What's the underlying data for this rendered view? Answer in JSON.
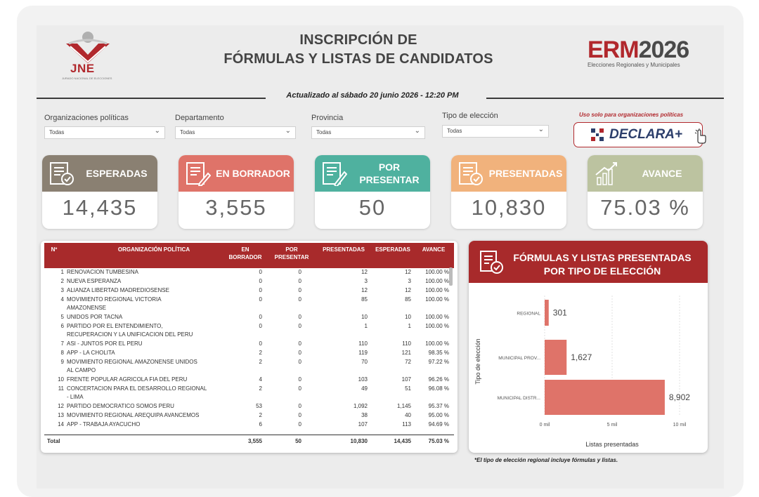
{
  "header": {
    "title_line1": "INSCRIPCIÓN DE",
    "title_line2": "FÓRMULAS Y LISTAS DE CANDIDATOS",
    "updated": "Actualizado al sábado 20 junio 2026 - 12:20 PM",
    "left_logo_text": "JNE",
    "left_logo_sub": "JURADO NACIONAL DE ELECCIONES",
    "right_logo_a": "ERM",
    "right_logo_b": "2026",
    "right_logo_sub": "Elecciones Regionales y Municipales"
  },
  "filters": [
    {
      "label": "Organizaciones políticas",
      "value": "Todas"
    },
    {
      "label": "Departamento",
      "value": "Todas"
    },
    {
      "label": "Provincia",
      "value": "Todas"
    },
    {
      "label": "Tipo de elección",
      "value": "Todas"
    }
  ],
  "declara": {
    "note": "Uso solo para organizaciones políticas",
    "label": "DECLARA+"
  },
  "kpis": [
    {
      "label": "ESPERADAS",
      "value": "14,435",
      "color": "#8a8072"
    },
    {
      "label": "EN BORRADOR",
      "value": "3,555",
      "color": "#df7369"
    },
    {
      "label": "POR PRESENTAR",
      "value": "50",
      "color": "#4fb19f"
    },
    {
      "label": "PRESENTADAS",
      "value": "10,830",
      "color": "#f1b27c"
    },
    {
      "label": "AVANCE",
      "value": "75.03 %",
      "color": "#bcc3a0"
    }
  ],
  "table": {
    "headers": [
      "Nº",
      "ORGANIZACIÓN POLÍTICA",
      "EN BORRADOR",
      "POR PRESENTAR",
      "PRESENTADAS",
      "ESPERADAS",
      "AVANCE"
    ],
    "rows": [
      {
        "n": "1",
        "org": [
          "RENOVACION TUMBESINA"
        ],
        "borr": "0",
        "por": "0",
        "pres": "12",
        "esp": "12",
        "av": "100.00 %"
      },
      {
        "n": "2",
        "org": [
          "NUEVA ESPERANZA"
        ],
        "borr": "0",
        "por": "0",
        "pres": "3",
        "esp": "3",
        "av": "100.00 %"
      },
      {
        "n": "3",
        "org": [
          "ALIANZA LIBERTAD MADREDIOSENSE"
        ],
        "borr": "0",
        "por": "0",
        "pres": "12",
        "esp": "12",
        "av": "100.00 %"
      },
      {
        "n": "4",
        "org": [
          "MOVIMIENTO REGIONAL VICTORIA",
          "AMAZONENSE"
        ],
        "borr": "0",
        "por": "0",
        "pres": "85",
        "esp": "85",
        "av": "100.00 %"
      },
      {
        "n": "5",
        "org": [
          "UNIDOS POR TACNA"
        ],
        "borr": "0",
        "por": "0",
        "pres": "10",
        "esp": "10",
        "av": "100.00 %"
      },
      {
        "n": "6",
        "org": [
          "PARTIDO POR EL ENTENDIMIENTO,",
          "RECUPERACION Y LA UNIFICACION DEL PERU"
        ],
        "borr": "0",
        "por": "0",
        "pres": "1",
        "esp": "1",
        "av": "100.00 %"
      },
      {
        "n": "7",
        "org": [
          "ASI - JUNTOS POR EL PERU"
        ],
        "borr": "0",
        "por": "0",
        "pres": "110",
        "esp": "110",
        "av": "100.00 %"
      },
      {
        "n": "8",
        "org": [
          "APP - LA CHOLITA"
        ],
        "borr": "2",
        "por": "0",
        "pres": "119",
        "esp": "121",
        "av": "98.35 %"
      },
      {
        "n": "9",
        "org": [
          "MOVIMIENTO REGIONAL AMAZONENSE UNIDOS",
          "AL CAMPO"
        ],
        "borr": "2",
        "por": "0",
        "pres": "70",
        "esp": "72",
        "av": "97.22 %"
      },
      {
        "n": "10",
        "org": [
          "FRENTE POPULAR AGRICOLA FIA DEL PERU"
        ],
        "borr": "4",
        "por": "0",
        "pres": "103",
        "esp": "107",
        "av": "96.26 %"
      },
      {
        "n": "11",
        "org": [
          "CONCERTACION PARA EL DESARROLLO REGIONAL",
          "- LIMA"
        ],
        "borr": "2",
        "por": "0",
        "pres": "49",
        "esp": "51",
        "av": "96.08 %"
      },
      {
        "n": "12",
        "org": [
          "PARTIDO DEMOCRATICO SOMOS PERU"
        ],
        "borr": "53",
        "por": "0",
        "pres": "1,092",
        "esp": "1,145",
        "av": "95.37 %"
      },
      {
        "n": "13",
        "org": [
          "MOVIMIENTO REGIONAL AREQUIPA AVANCEMOS"
        ],
        "borr": "2",
        "por": "0",
        "pres": "38",
        "esp": "40",
        "av": "95.00 %"
      },
      {
        "n": "14",
        "org": [
          "APP - TRABAJA AYACUCHO"
        ],
        "borr": "6",
        "por": "0",
        "pres": "107",
        "esp": "113",
        "av": "94.69 %"
      }
    ],
    "total": {
      "label": "Total",
      "borr": "3,555",
      "por": "50",
      "pres": "10,830",
      "esp": "14,435",
      "av": "75.03 %"
    }
  },
  "chart_data": {
    "type": "bar",
    "orientation": "horizontal",
    "title": "FÓRMULAS Y LISTAS PRESENTADAS POR TIPO DE ELECCIÓN",
    "categories": [
      "REGIONAL",
      "MUNICIPAL PROV...",
      "MUNICIPAL DISTR..."
    ],
    "values": [
      301,
      1627,
      8902
    ],
    "value_labels": [
      "301",
      "1,627",
      "8,902"
    ],
    "xlabel": "Listas presentadas",
    "ylabel": "Tipo de elección",
    "xlim": [
      0,
      10000
    ],
    "ticks": [
      0,
      5000,
      10000
    ],
    "tick_labels": [
      "0 mil",
      "5 mil",
      "10 mil"
    ],
    "bar_color": "#df7369",
    "grid": true
  },
  "footnote": "*El tipo de elección regional incluye fórmulas y listas."
}
